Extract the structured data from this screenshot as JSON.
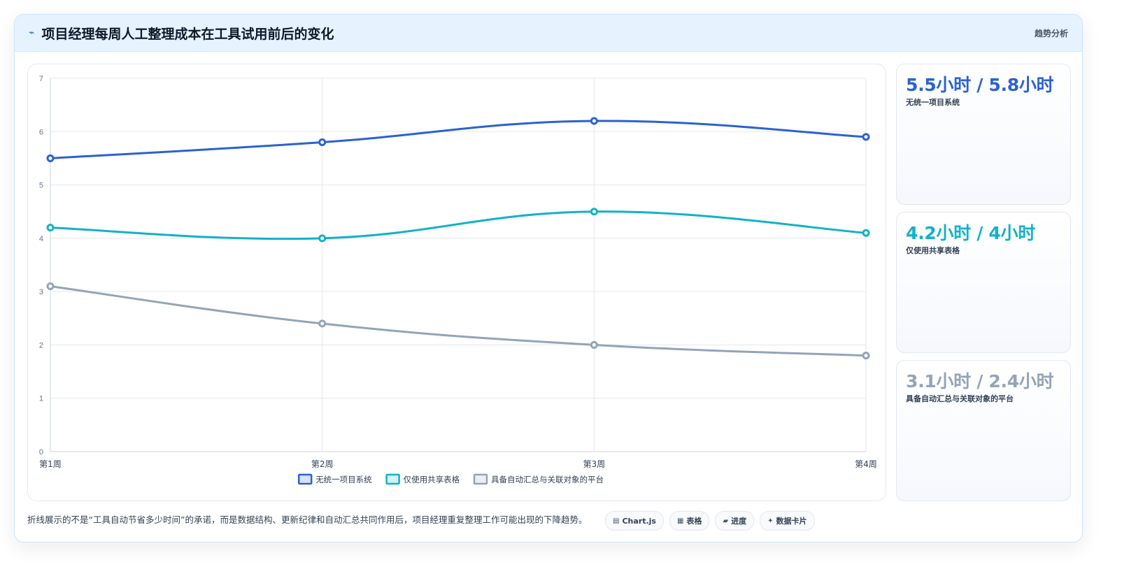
{
  "header": {
    "title": "项目经理每周人工整理成本在工具试用前后的变化",
    "tag": "趋势分析",
    "icon": "trend-icon"
  },
  "chart_data": {
    "type": "line",
    "categories": [
      "第1周",
      "第2周",
      "第3周",
      "第4周"
    ],
    "ylim": [
      0,
      7
    ],
    "yticks": [
      0,
      1,
      2,
      3,
      4,
      5,
      6,
      7
    ],
    "grid": true,
    "legend_position": "bottom-center",
    "series": [
      {
        "name": "无统一项目系统",
        "values": [
          5.5,
          5.8,
          6.2,
          5.9
        ],
        "color": "#2b62d1"
      },
      {
        "name": "仅使用共享表格",
        "values": [
          4.2,
          4.0,
          4.5,
          4.1
        ],
        "color": "#13b1c8"
      },
      {
        "name": "具备自动汇总与关联对象的平台",
        "values": [
          3.1,
          2.4,
          2.0,
          1.8
        ],
        "color": "#94a3b8"
      }
    ]
  },
  "stats": [
    {
      "value": "5.5小时 / 5.8小时",
      "label": "无统一项目系统",
      "color": "#2b62d1"
    },
    {
      "value": "4.2小时 / 4小时",
      "label": "仅使用共享表格",
      "color": "#13b1c8"
    },
    {
      "value": "3.1小时 / 2.4小时",
      "label": "具备自动汇总与关联对象的平台",
      "color": "#94a3b8"
    }
  ],
  "footer": {
    "note": "折线展示的不是“工具自动节省多少时间”的承诺，而是数据结构、更新纪律和自动汇总共同作用后，项目经理重复整理工作可能出现的下降趋势。",
    "pills": [
      {
        "icon": "chart-icon",
        "label": "Chart.js"
      },
      {
        "icon": "table-icon",
        "label": "表格"
      },
      {
        "icon": "progress-icon",
        "label": "进度"
      },
      {
        "icon": "sparkle-icon",
        "label": "数据卡片"
      }
    ]
  }
}
